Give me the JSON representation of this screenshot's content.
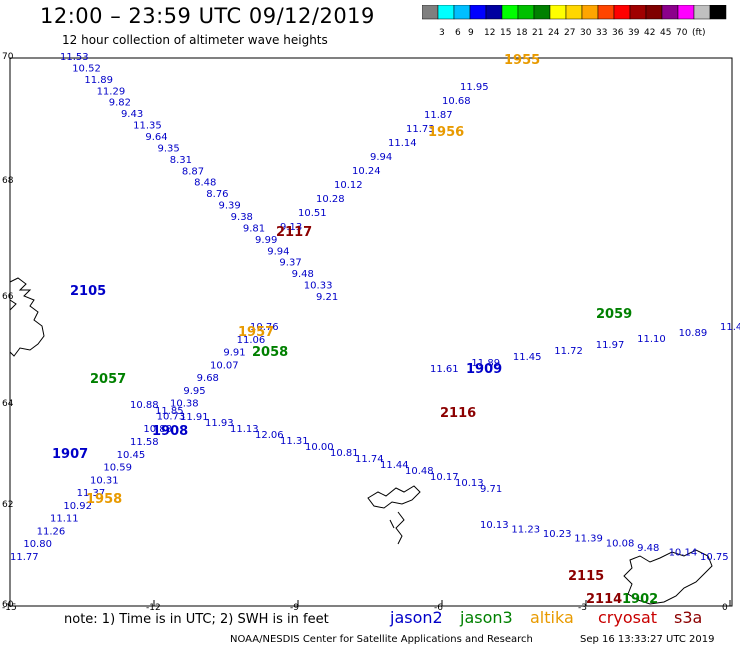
{
  "title": "12:00 – 23:59 UTC 09/12/2019",
  "subtitle": "12 hour collection of altimeter wave heights",
  "colorscale": {
    "colors": [
      "#7f7f7f",
      "#00ffff",
      "#00bfff",
      "#0000ff",
      "#0000a0",
      "#00ff00",
      "#00c000",
      "#008000",
      "#ffff00",
      "#ffd700",
      "#ffa500",
      "#ff4500",
      "#ff0000",
      "#a00000",
      "#7f0000",
      "#8b008b",
      "#ff00ff",
      "#c0c0c0",
      "#000000"
    ],
    "labels": [
      "3",
      "6",
      "9",
      "12",
      "15",
      "18",
      "21",
      "24",
      "27",
      "30",
      "33",
      "36",
      "39",
      "42",
      "45",
      "70",
      "(ft)"
    ]
  },
  "axes": {
    "lon_ticks": [
      "-15",
      "-12",
      "-9",
      "-6",
      "-3",
      "0"
    ],
    "lat_ticks": [
      "70",
      "68",
      "66",
      "64",
      "62",
      "60"
    ]
  },
  "tracks": [
    {
      "sat": "jason2",
      "color": "#0000c8",
      "label": "2105",
      "values": [
        "11.53",
        "10.52",
        "11.89",
        "11.29",
        "9.82",
        "9.43",
        "11.35",
        "9.64",
        "9.35",
        "8.31",
        "8.87",
        "8.48",
        "8.76",
        "9.39",
        "9.38",
        "9.81",
        "9.99",
        "9.94",
        "9.37",
        "9.48",
        "10.33",
        "9.21"
      ]
    },
    {
      "sat": "jason2",
      "color": "#0000c8",
      "label": "1907",
      "values": [
        "11.77",
        "10.80",
        "11.26",
        "11.11",
        "10.92",
        "11.37",
        "10.31",
        "10.59",
        "10.45",
        "11.58",
        "10.88",
        "10.73",
        "10.38",
        "9.95",
        "9.68",
        "10.07",
        "9.91",
        "11.06",
        "10.76"
      ]
    },
    {
      "sat": "jason2",
      "color": "#0000c8",
      "label": "1909",
      "values": [
        "11.61",
        "11.89",
        "11.45",
        "11.72",
        "11.97",
        "11.10",
        "10.89",
        "11.41"
      ]
    },
    {
      "sat": "jason2",
      "color": "#0000c8",
      "label": "1908",
      "values": [
        "10.88",
        "11.85",
        "11.91",
        "11.93",
        "11.13",
        "12.06",
        "11.31",
        "10.00",
        "10.81",
        "11.74",
        "11.44",
        "10.48",
        "10.17",
        "10.13",
        "9.71"
      ]
    },
    {
      "sat": "jason2",
      "color": "#0000c8",
      "label": "1956",
      "values": [
        "11.95",
        "10.68",
        "11.87",
        "11.73",
        "11.14",
        "9.94",
        "10.24",
        "10.12",
        "10.28",
        "10.51",
        "9.13"
      ]
    },
    {
      "sat": "jason2",
      "color": "#0000c8",
      "label": "2116",
      "values": [
        "10.13",
        "11.23",
        "10.23",
        "11.39",
        "10.08",
        "9.48",
        "10.14",
        "10.75"
      ]
    }
  ],
  "labels": {
    "orbit_1955": "1955",
    "orbit_1956": "1956",
    "orbit_2117": "2117",
    "orbit_2105": "2105",
    "orbit_1957": "1957",
    "orbit_2058": "2058",
    "orbit_2057": "2057",
    "orbit_1908": "1908",
    "orbit_1907": "1907",
    "orbit_1958": "1958",
    "orbit_1909": "1909",
    "orbit_2116": "2116",
    "orbit_2115": "2115",
    "orbit_1902": "1902",
    "orbit_2114": "2114",
    "orbit_2059": "2059"
  },
  "note": "note:  1) Time is in UTC;  2) SWH is in feet",
  "legend": {
    "jason2": "jason2",
    "jason3": "jason3",
    "altika": "altika",
    "cryosat": "cryosat",
    "s3a": "s3a"
  },
  "credit": "NOAA/NESDIS Center for Satellite Applications and Research",
  "timestamp": "Sep 16 13:33:27 UTC 2019"
}
